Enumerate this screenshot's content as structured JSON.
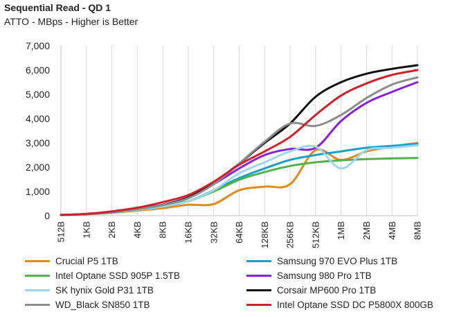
{
  "chart_data": {
    "type": "line",
    "title": "Sequential Read - QD 1",
    "subtitle": "ATTO - MBps - Higher is Better",
    "xlabel": "",
    "ylabel": "",
    "categories": [
      "512B",
      "1KB",
      "2KB",
      "4KB",
      "8KB",
      "16KB",
      "32KB",
      "64KB",
      "128KB",
      "256KB",
      "512KB",
      "1MB",
      "2MB",
      "4MB",
      "8MB"
    ],
    "ylim": [
      0,
      7000
    ],
    "yticks": [
      0,
      1000,
      2000,
      3000,
      4000,
      5000,
      6000,
      7000
    ],
    "ytick_labels": [
      "0",
      "1,000",
      "2,000",
      "3,000",
      "4,000",
      "5,000",
      "6,000",
      "7,000"
    ],
    "grid": "vertical",
    "series": [
      {
        "name": "Crucial P5 1TB",
        "color": "#e28a17",
        "values": [
          30,
          60,
          120,
          210,
          310,
          450,
          480,
          1050,
          1200,
          1300,
          2700,
          2300,
          2650,
          2850,
          3000
        ]
      },
      {
        "name": "Samsung 970 EVO Plus 1TB",
        "color": "#1aa0c8",
        "values": [
          30,
          70,
          130,
          240,
          380,
          600,
          1050,
          1550,
          1950,
          2300,
          2500,
          2650,
          2800,
          2880,
          2950
        ]
      },
      {
        "name": "Intel Optane SSD 905P 1.5TB",
        "color": "#4fb34b",
        "values": [
          30,
          70,
          140,
          250,
          400,
          600,
          1000,
          1480,
          1800,
          2050,
          2200,
          2280,
          2330,
          2360,
          2380
        ]
      },
      {
        "name": "Samsung 980 Pro 1TB",
        "color": "#8a1ee0",
        "values": [
          30,
          70,
          140,
          270,
          450,
          750,
          1300,
          1950,
          2500,
          2750,
          2800,
          3900,
          4650,
          5100,
          5500
        ]
      },
      {
        "name": "SK hynix Gold P31 1TB",
        "color": "#9bd8f0",
        "values": [
          30,
          70,
          130,
          240,
          380,
          600,
          1050,
          1750,
          2200,
          2650,
          2850,
          1950,
          2700,
          2800,
          2900
        ]
      },
      {
        "name": "Corsair MP600 Pro 1TB",
        "color": "#111111",
        "values": [
          30,
          70,
          140,
          280,
          450,
          750,
          1350,
          2150,
          3000,
          3800,
          4900,
          5500,
          5850,
          6050,
          6200
        ]
      },
      {
        "name": "WD_Black SN850 1TB",
        "color": "#8c8c8c",
        "values": [
          30,
          70,
          140,
          270,
          440,
          720,
          1300,
          2150,
          3050,
          3800,
          3700,
          4150,
          4850,
          5400,
          5700
        ]
      },
      {
        "name": "Intel Optane SSD DC P5800X 800GB",
        "color": "#d0202a",
        "values": [
          30,
          80,
          180,
          330,
          560,
          850,
          1400,
          2100,
          2650,
          3250,
          4150,
          4950,
          5450,
          5800,
          6000
        ]
      }
    ]
  }
}
